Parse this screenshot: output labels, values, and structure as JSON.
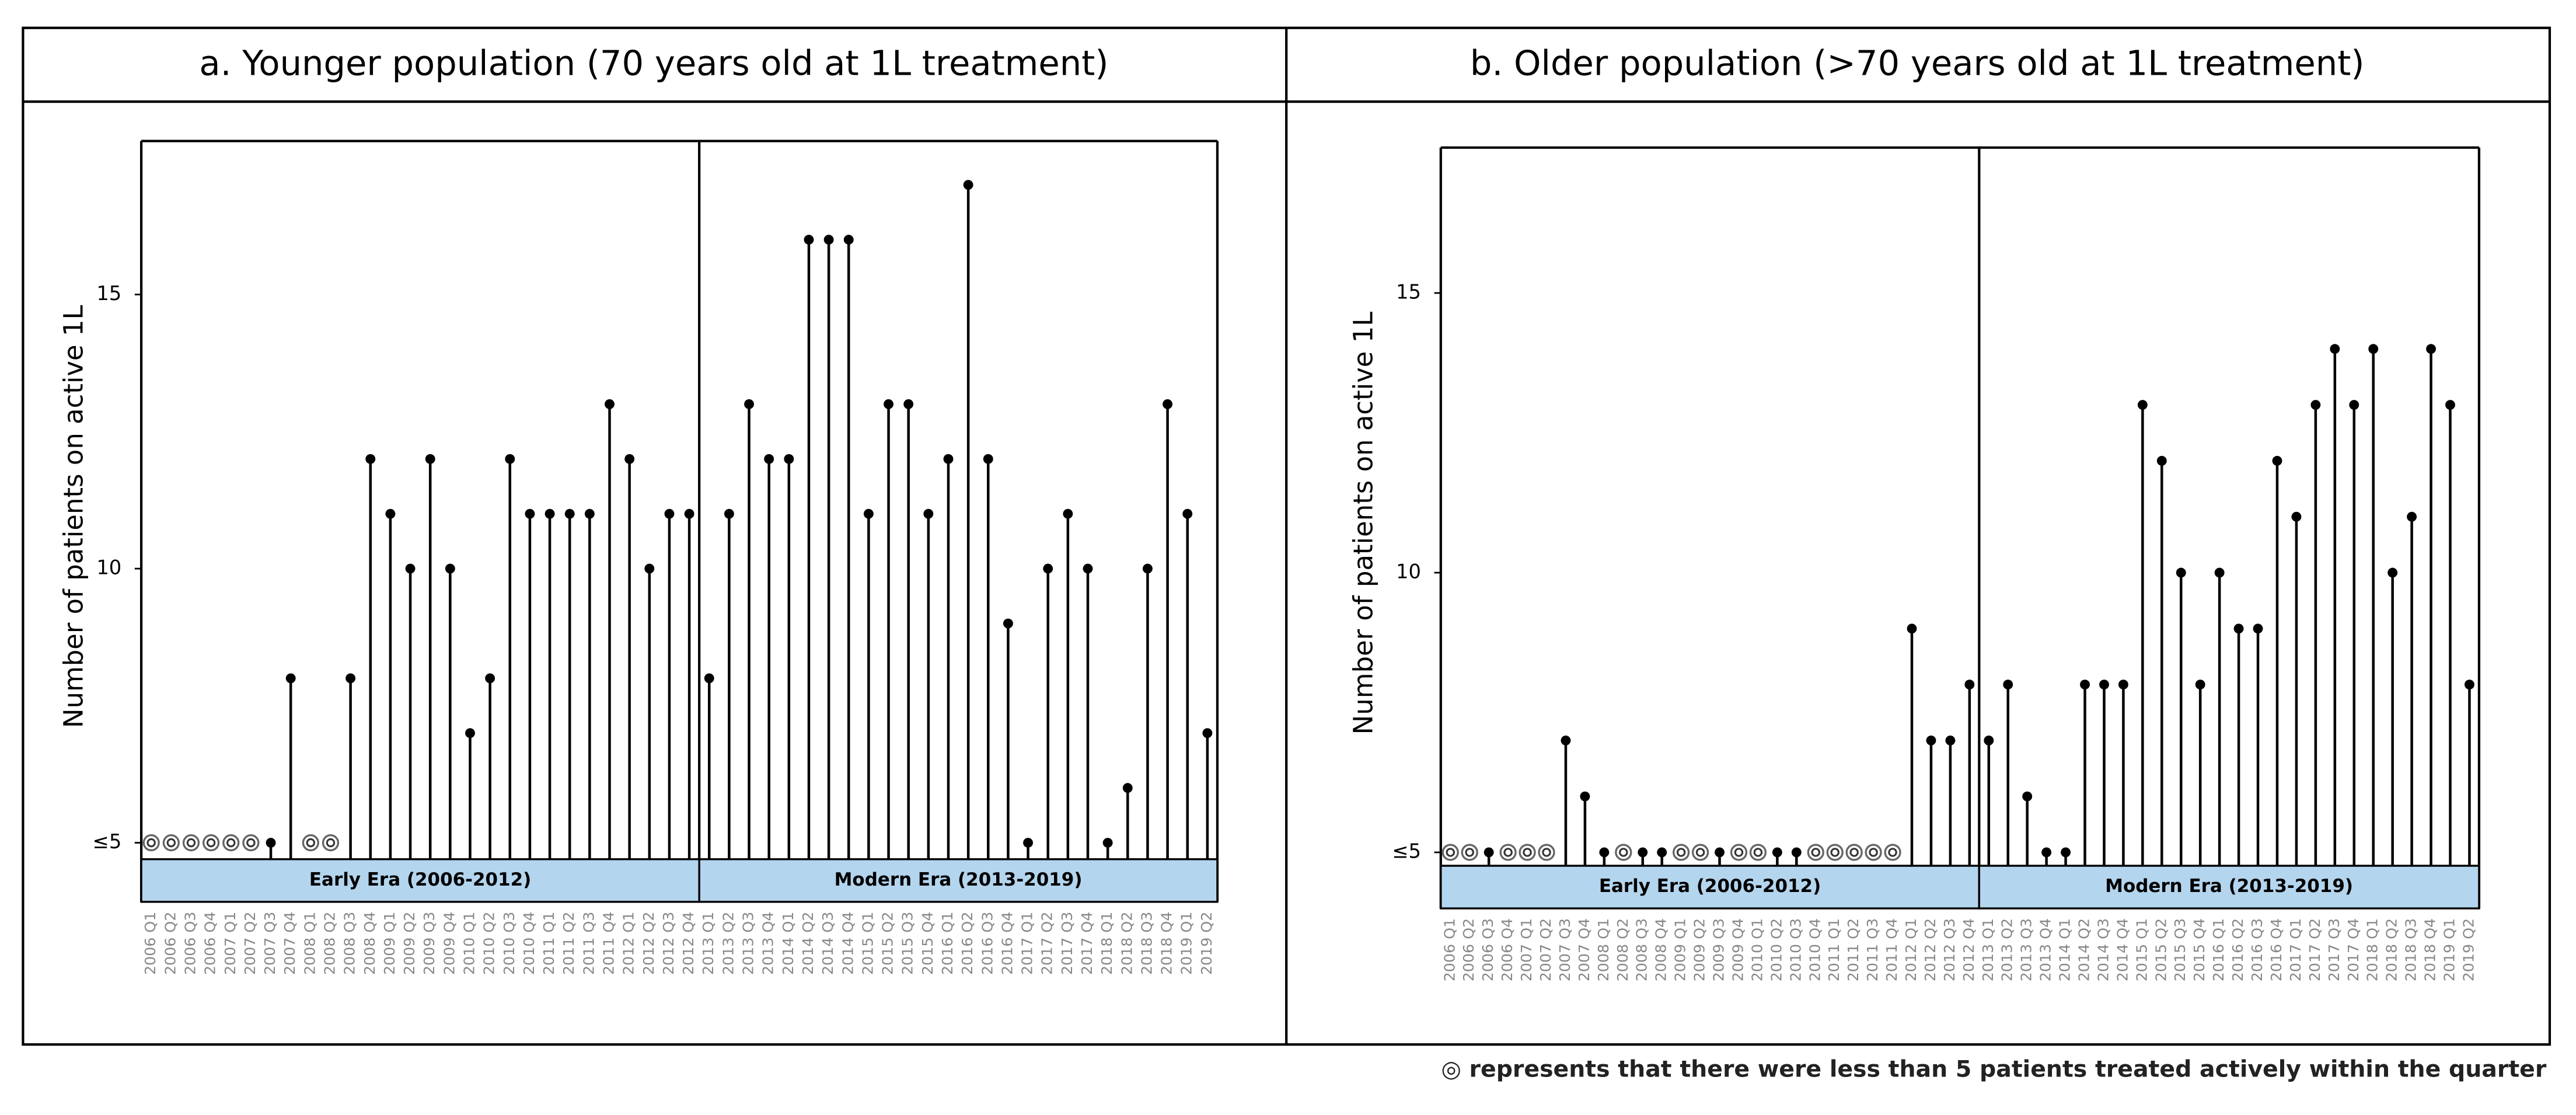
{
  "chart_data": [
    {
      "type": "lollipop",
      "title": "a. Younger population (70 years old at 1L treatment)",
      "y_label": "Number of patients on active 1L",
      "categories": [
        "2006 Q1",
        "2006 Q2",
        "2006 Q3",
        "2006 Q4",
        "2007 Q1",
        "2007 Q2",
        "2007 Q3",
        "2007 Q4",
        "2008 Q1",
        "2008 Q2",
        "2008 Q3",
        "2008 Q4",
        "2009 Q1",
        "2009 Q2",
        "2009 Q3",
        "2009 Q4",
        "2010 Q1",
        "2010 Q2",
        "2010 Q3",
        "2010 Q4",
        "2011 Q1",
        "2011 Q2",
        "2011 Q3",
        "2011 Q4",
        "2012 Q1",
        "2012 Q2",
        "2012 Q3",
        "2012 Q4",
        "2013 Q1",
        "2013 Q2",
        "2013 Q3",
        "2013 Q4",
        "2014 Q1",
        "2014 Q2",
        "2014 Q3",
        "2014 Q4",
        "2015 Q1",
        "2015 Q2",
        "2015 Q3",
        "2015 Q4",
        "2016 Q1",
        "2016 Q2",
        "2016 Q3",
        "2016 Q4",
        "2017 Q1",
        "2017 Q2",
        "2017 Q3",
        "2017 Q4",
        "2018 Q1",
        "2018 Q2",
        "2018 Q3",
        "2018 Q4",
        "2019 Q1",
        "2019 Q2"
      ],
      "values": [
        null,
        null,
        null,
        null,
        null,
        null,
        5,
        8,
        null,
        null,
        8,
        12,
        11,
        10,
        12,
        10,
        7,
        8,
        12,
        11,
        11,
        11,
        11,
        13,
        12,
        10,
        11,
        11,
        8,
        11,
        13,
        12,
        12,
        16,
        16,
        16,
        11,
        13,
        13,
        11,
        12,
        17,
        12,
        9,
        5,
        10,
        11,
        10,
        5,
        6,
        10,
        13,
        11,
        7
      ],
      "color": "#000000",
      "ylim": [
        4.7,
        17.8
      ],
      "yticks": [
        {
          "value": 5,
          "label": "≤5"
        },
        10,
        15
      ],
      "eras": [
        {
          "label": "Early Era (2006-2012)",
          "count": 28,
          "color": "#b4d5ee"
        },
        {
          "label": "Modern Era (2013-2019)",
          "count": 26,
          "color": "#b4d5ee"
        }
      ]
    },
    {
      "type": "lollipop",
      "title": "b. Older population (>70 years old at 1L treatment)",
      "y_label": "Number of patients on active 1L",
      "categories": [
        "2006 Q1",
        "2006 Q2",
        "2006 Q3",
        "2006 Q4",
        "2007 Q1",
        "2007 Q2",
        "2007 Q3",
        "2007 Q4",
        "2008 Q1",
        "2008 Q2",
        "2008 Q3",
        "2008 Q4",
        "2009 Q1",
        "2009 Q2",
        "2009 Q3",
        "2009 Q4",
        "2010 Q1",
        "2010 Q2",
        "2010 Q3",
        "2010 Q4",
        "2011 Q1",
        "2011 Q2",
        "2011 Q3",
        "2011 Q4",
        "2012 Q1",
        "2012 Q2",
        "2012 Q3",
        "2012 Q4",
        "2013 Q1",
        "2013 Q2",
        "2013 Q3",
        "2013 Q4",
        "2014 Q1",
        "2014 Q2",
        "2014 Q3",
        "2014 Q4",
        "2015 Q1",
        "2015 Q2",
        "2015 Q3",
        "2015 Q4",
        "2016 Q1",
        "2016 Q2",
        "2016 Q3",
        "2016 Q4",
        "2017 Q1",
        "2017 Q2",
        "2017 Q3",
        "2017 Q4",
        "2018 Q1",
        "2018 Q2",
        "2018 Q3",
        "2018 Q4",
        "2019 Q1",
        "2019 Q2"
      ],
      "values": [
        null,
        null,
        5,
        null,
        null,
        null,
        7,
        6,
        5,
        null,
        5,
        5,
        null,
        null,
        5,
        null,
        null,
        5,
        5,
        null,
        null,
        null,
        null,
        null,
        9,
        7,
        7,
        8,
        7,
        8,
        6,
        5,
        5,
        8,
        8,
        8,
        13,
        12,
        10,
        8,
        10,
        9,
        9,
        12,
        11,
        13,
        14,
        13,
        14,
        10,
        11,
        14,
        13,
        8
      ],
      "color": "#000000",
      "ylim": [
        4.76,
        17.6
      ],
      "yticks": [
        {
          "value": 5,
          "label": "≤5"
        },
        10,
        15
      ],
      "eras": [
        {
          "label": "Early Era (2006-2012)",
          "count": 28,
          "color": "#b4d5ee"
        },
        {
          "label": "Modern Era (2013-2019)",
          "count": 26,
          "color": "#b4d5ee"
        }
      ]
    }
  ],
  "note": "◎ represents that there were less than 5 patients treated actively within the quarter"
}
